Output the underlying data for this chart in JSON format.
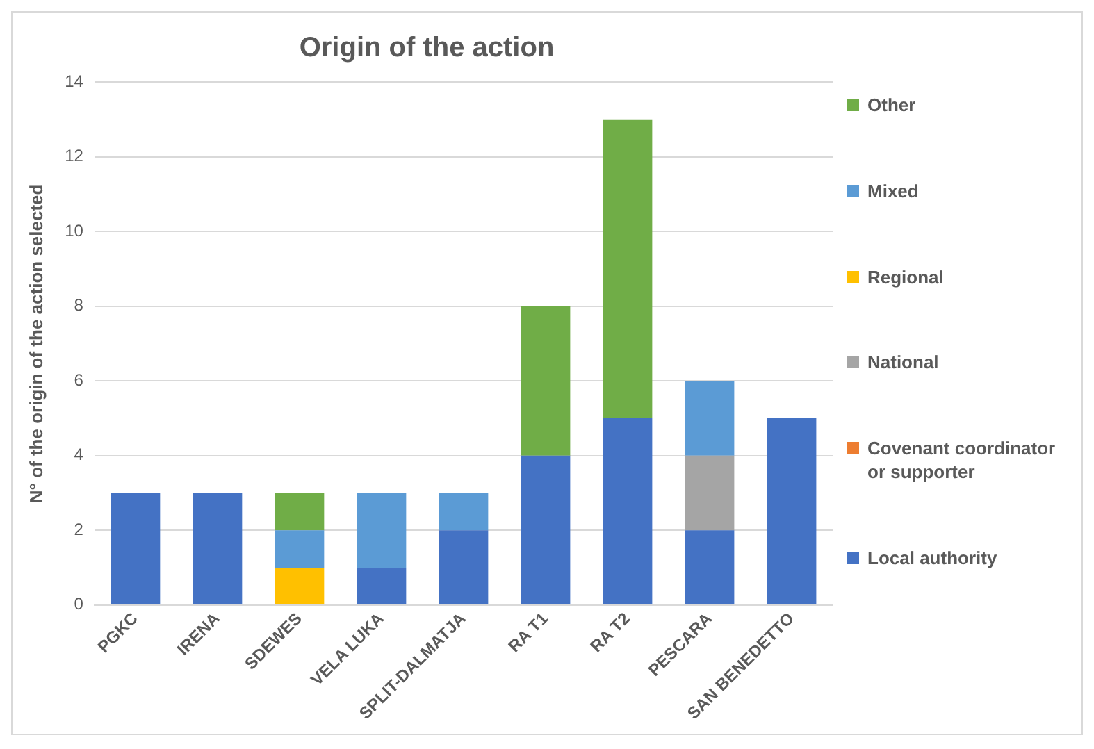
{
  "chart_data": {
    "type": "bar",
    "title": "Origin of the action",
    "ylabel": "N° of the origin of the action selected",
    "stacked": true,
    "categories": [
      "PGKC",
      "IRENA",
      "SDEWES",
      "VELA LUKA",
      "SPLIT-DALMATJA",
      "RA T1",
      "RA T2",
      "PESCARA",
      "SAN BENEDETTO"
    ],
    "series": [
      {
        "name": "Local authority",
        "color": "#4472c4",
        "values": [
          3,
          3,
          0,
          1,
          2,
          4,
          5,
          2,
          5
        ]
      },
      {
        "name": "Covenant coordinator or supporter",
        "color": "#ed7d31",
        "values": [
          0,
          0,
          0,
          0,
          0,
          0,
          0,
          0,
          0
        ]
      },
      {
        "name": "National",
        "color": "#a5a5a5",
        "values": [
          0,
          0,
          0,
          0,
          0,
          0,
          0,
          2,
          0
        ]
      },
      {
        "name": "Regional",
        "color": "#ffc000",
        "values": [
          0,
          0,
          1,
          0,
          0,
          0,
          0,
          0,
          0
        ]
      },
      {
        "name": "Mixed",
        "color": "#5b9bd5",
        "values": [
          0,
          0,
          1,
          2,
          1,
          0,
          0,
          2,
          0
        ]
      },
      {
        "name": "Other",
        "color": "#70ad47",
        "values": [
          0,
          0,
          1,
          0,
          0,
          4,
          8,
          0,
          0
        ]
      }
    ],
    "ylim": [
      0,
      14
    ],
    "yticks": [
      0,
      2,
      4,
      6,
      8,
      10,
      12,
      14
    ],
    "grid": "y",
    "legend": "right"
  }
}
